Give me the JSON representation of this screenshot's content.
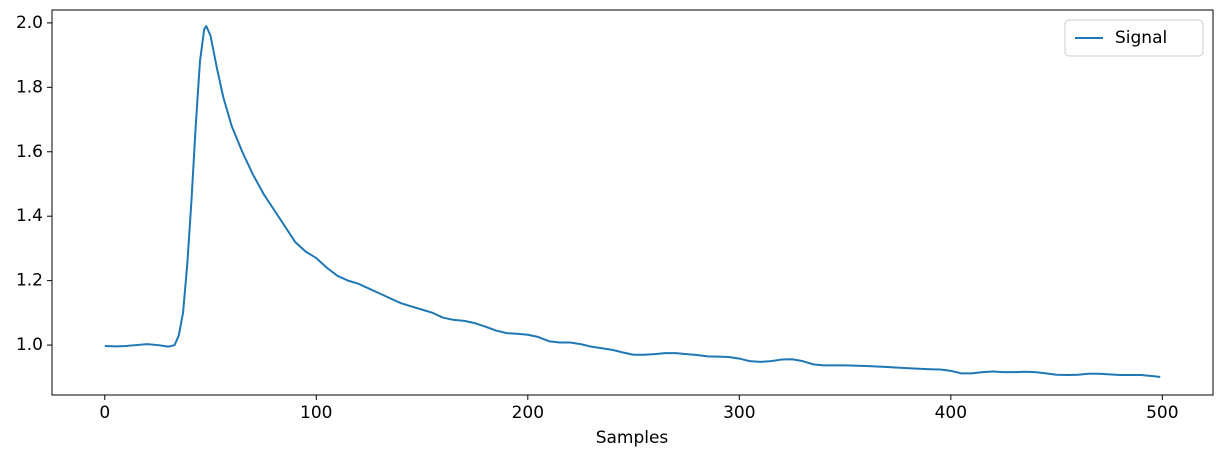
{
  "chart_data": {
    "type": "line",
    "xlabel": "Samples",
    "x": [
      0,
      5,
      10,
      15,
      20,
      25,
      30,
      33,
      35,
      37,
      39,
      41,
      43,
      45,
      47,
      48,
      50,
      53,
      56,
      60,
      65,
      70,
      75,
      80,
      85,
      90,
      95,
      100,
      105,
      110,
      115,
      120,
      125,
      130,
      135,
      140,
      145,
      150,
      155,
      160,
      165,
      170,
      175,
      180,
      185,
      190,
      195,
      200,
      205,
      210,
      215,
      220,
      225,
      230,
      235,
      240,
      245,
      250,
      255,
      260,
      265,
      270,
      275,
      280,
      285,
      290,
      295,
      300,
      305,
      310,
      315,
      320,
      325,
      330,
      335,
      340,
      350,
      360,
      370,
      380,
      390,
      395,
      400,
      405,
      410,
      415,
      420,
      425,
      430,
      435,
      440,
      445,
      450,
      455,
      460,
      465,
      470,
      475,
      480,
      485,
      490,
      495,
      499
    ],
    "series": [
      {
        "name": "Signal",
        "color": "#1f77b4",
        "values": [
          0.997,
          0.996,
          0.997,
          1.0,
          1.003,
          1.0,
          0.995,
          1.0,
          1.03,
          1.1,
          1.25,
          1.45,
          1.68,
          1.88,
          1.98,
          1.99,
          1.96,
          1.86,
          1.77,
          1.68,
          1.6,
          1.53,
          1.47,
          1.42,
          1.37,
          1.32,
          1.29,
          1.27,
          1.24,
          1.215,
          1.2,
          1.19,
          1.175,
          1.16,
          1.145,
          1.13,
          1.12,
          1.11,
          1.1,
          1.085,
          1.078,
          1.075,
          1.068,
          1.057,
          1.045,
          1.037,
          1.035,
          1.032,
          1.025,
          1.012,
          1.008,
          1.008,
          1.003,
          0.995,
          0.99,
          0.985,
          0.977,
          0.97,
          0.97,
          0.972,
          0.975,
          0.975,
          0.972,
          0.969,
          0.965,
          0.964,
          0.963,
          0.958,
          0.95,
          0.948,
          0.95,
          0.955,
          0.956,
          0.95,
          0.94,
          0.937,
          0.937,
          0.935,
          0.932,
          0.928,
          0.925,
          0.924,
          0.92,
          0.912,
          0.912,
          0.916,
          0.918,
          0.916,
          0.916,
          0.917,
          0.916,
          0.912,
          0.908,
          0.907,
          0.908,
          0.911,
          0.911,
          0.909,
          0.907,
          0.907,
          0.907,
          0.904,
          0.901
        ]
      }
    ],
    "xlim": [
      -24.95,
      523.95
    ],
    "ylim": [
      0.845,
      2.04
    ],
    "xticks": [
      0,
      100,
      200,
      300,
      400,
      500
    ],
    "yticks": [
      {
        "value": 1,
        "label": "1.0"
      },
      {
        "value": 1.2,
        "label": "1.2"
      },
      {
        "value": 1.4,
        "label": "1.4"
      },
      {
        "value": 1.6,
        "label": "1.6"
      },
      {
        "value": 1.8,
        "label": "1.8"
      },
      {
        "value": 2,
        "label": "2.0"
      }
    ],
    "legend": "upper right",
    "grid": false
  }
}
